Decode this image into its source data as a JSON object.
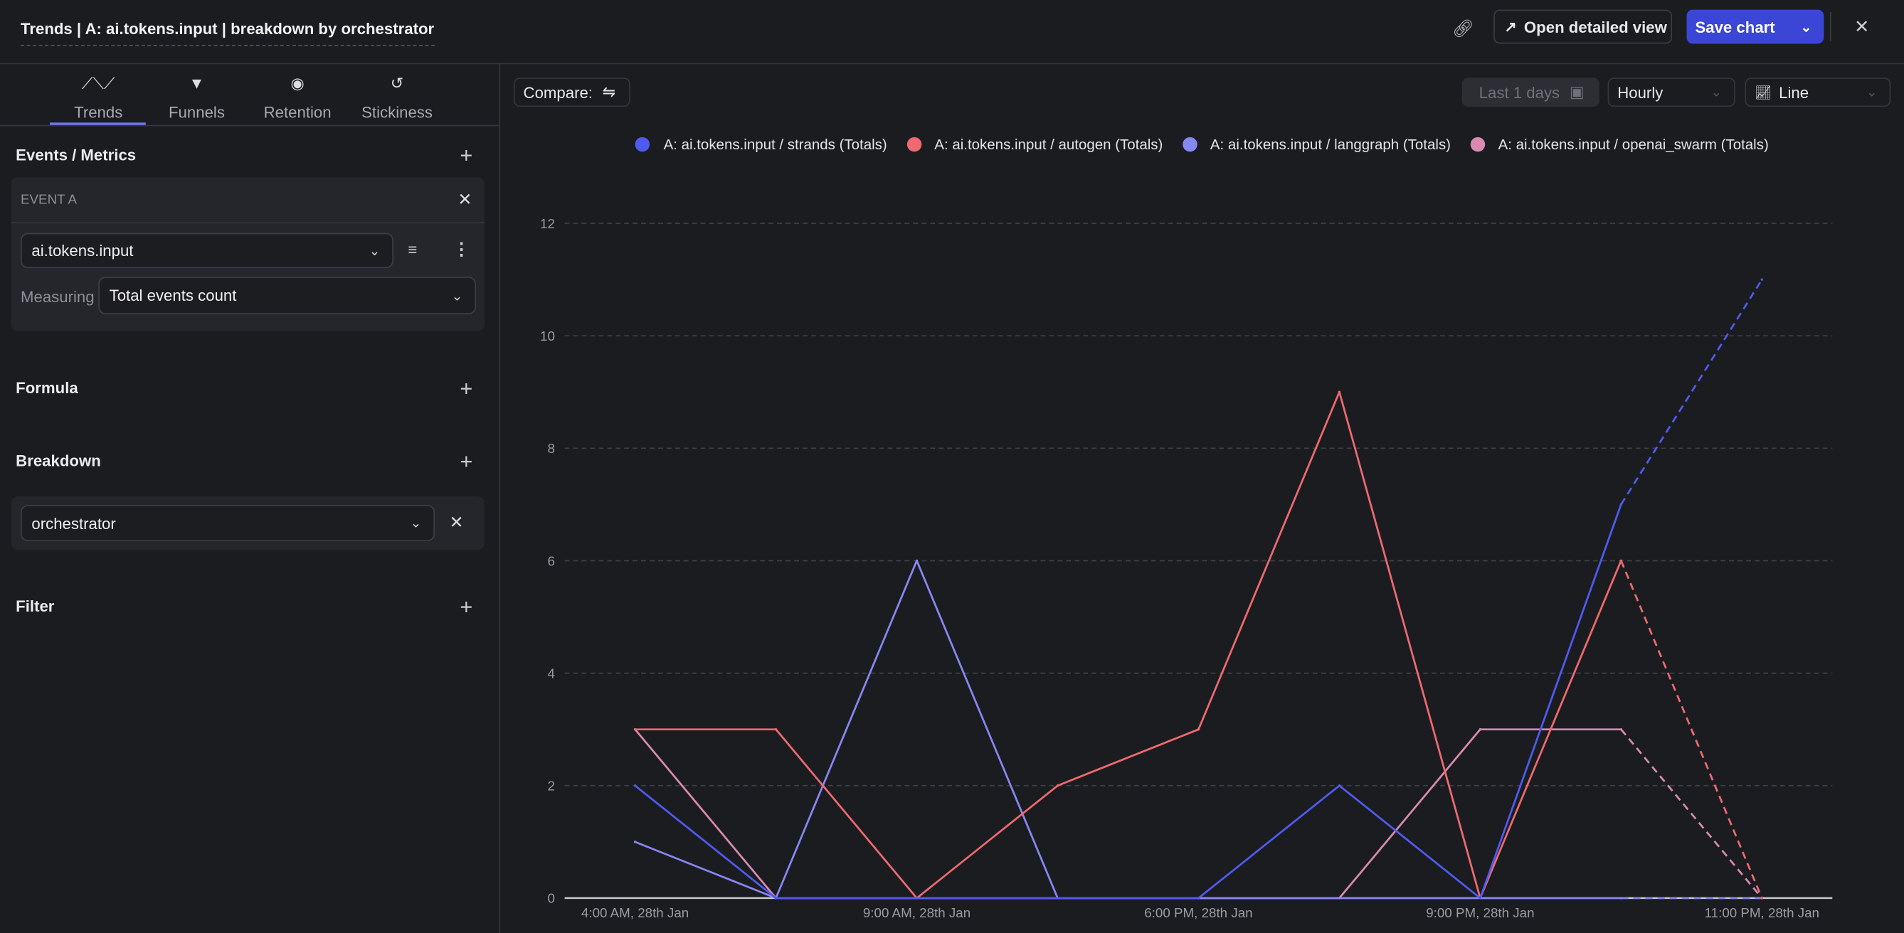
{
  "header": {
    "title": "Trends | A: ai.tokens.input | breakdown by orchestrator",
    "open_detailed_view": "Open detailed view",
    "save_chart": "Save chart"
  },
  "tabs": [
    {
      "label": "Trends",
      "icon": "trends-icon",
      "active": true
    },
    {
      "label": "Funnels",
      "icon": "funnel-icon"
    },
    {
      "label": "Retention",
      "icon": "retention-icon"
    },
    {
      "label": "Stickiness",
      "icon": "stickiness-icon"
    }
  ],
  "sidebar": {
    "events_title": "Events / Metrics",
    "event_label": "EVENT A",
    "event_value": "ai.tokens.input",
    "measuring_label": "Measuring",
    "measuring_value": "Total events count",
    "formula_title": "Formula",
    "breakdown_title": "Breakdown",
    "breakdown_value": "orchestrator",
    "filter_title": "Filter"
  },
  "toolbar": {
    "compare_label": "Compare:",
    "date_range": "Last 1 days",
    "interval": "Hourly",
    "chart_type": "Line"
  },
  "chart_data": {
    "type": "line",
    "categories": [
      "4:00 AM, 28th Jan",
      "",
      "9:00 AM, 28th Jan",
      "",
      "6:00 PM, 28th Jan",
      "",
      "9:00 PM, 28th Jan",
      "",
      "11:00 PM, 28th Jan"
    ],
    "ylim": [
      0,
      12
    ],
    "yticks": [
      0,
      2,
      4,
      6,
      8,
      10,
      12
    ],
    "grid": true,
    "legend_position": "top",
    "dashed_last_segment": true,
    "series": [
      {
        "name": "A: ai.tokens.input / strands (Totals)",
        "color": "#4f5bf0",
        "values": [
          2,
          0,
          0,
          0,
          0,
          2,
          0,
          7,
          11
        ]
      },
      {
        "name": "A: ai.tokens.input / autogen (Totals)",
        "color": "#ee6a70",
        "values": [
          3,
          3,
          0,
          2,
          3,
          9,
          0,
          6,
          0
        ]
      },
      {
        "name": "A: ai.tokens.input / langgraph (Totals)",
        "color": "#8787f3",
        "values": [
          1,
          0,
          6,
          0,
          0,
          0,
          0,
          0,
          0
        ]
      },
      {
        "name": "A: ai.tokens.input / openai_swarm (Totals)",
        "color": "#d98ab3",
        "values": [
          3,
          0,
          0,
          0,
          0,
          0,
          3,
          3,
          0
        ]
      }
    ]
  }
}
